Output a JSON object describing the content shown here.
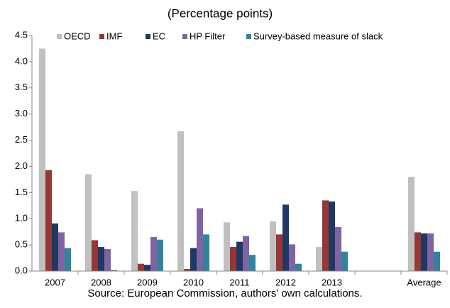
{
  "chart_data": {
    "type": "bar",
    "subtitle": "(Percentage points)",
    "source": "Source: European Commission, authors’ own calculations.",
    "categories": [
      "2007",
      "2008",
      "2009",
      "2010",
      "2011",
      "2012",
      "2013",
      null,
      "Average"
    ],
    "series": [
      {
        "name": "OECD",
        "color": "#c0c0c0",
        "values": [
          4.25,
          1.85,
          1.53,
          2.67,
          0.93,
          0.95,
          0.46,
          null,
          1.8
        ]
      },
      {
        "name": "IMF",
        "color": "#953735",
        "values": [
          1.93,
          0.59,
          0.14,
          0.04,
          0.46,
          0.7,
          1.35,
          null,
          0.74
        ]
      },
      {
        "name": "EC",
        "color": "#1f3864",
        "values": [
          0.91,
          0.46,
          0.12,
          0.44,
          0.56,
          1.27,
          1.33,
          null,
          0.72
        ]
      },
      {
        "name": "HP Filter",
        "color": "#8064a2",
        "values": [
          0.74,
          0.42,
          0.65,
          1.2,
          0.67,
          0.51,
          0.84,
          null,
          0.72
        ]
      },
      {
        "name": "Survey-based measure of slack",
        "color": "#31849b",
        "values": [
          0.44,
          0.02,
          0.6,
          0.7,
          0.31,
          0.14,
          0.37,
          null,
          0.37
        ]
      }
    ],
    "ylim": [
      0,
      4.5
    ],
    "yticks": [
      {
        "value": 0,
        "label": "0.0"
      },
      0.5,
      {
        "value": 1,
        "label": "1.0"
      },
      1.5,
      {
        "value": 2,
        "label": "2.0"
      },
      2.5,
      {
        "value": 3,
        "label": "3.0"
      },
      3.5,
      {
        "value": 4,
        "label": "4.0"
      },
      4.5
    ],
    "legend": "top"
  }
}
